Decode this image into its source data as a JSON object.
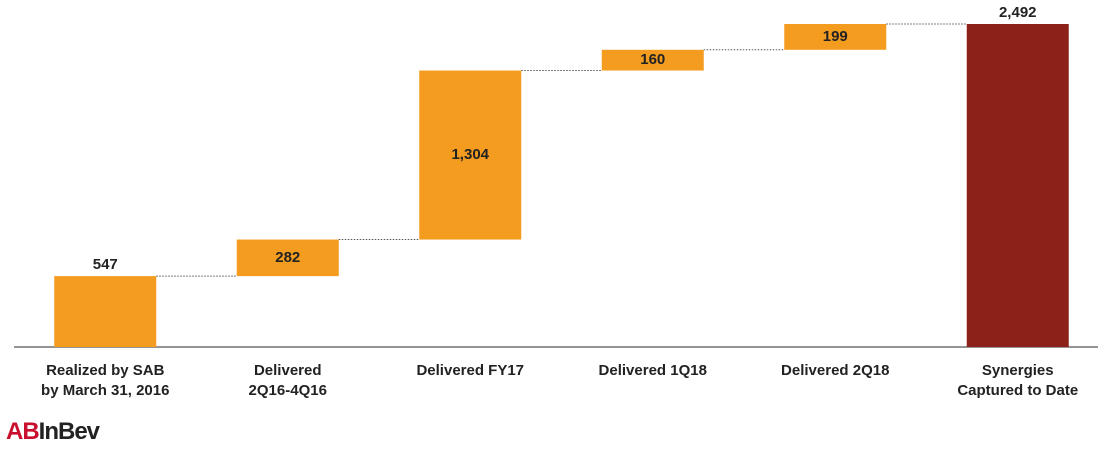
{
  "chart_data": {
    "type": "waterfall",
    "categories": [
      "Realized by SAB\nby March 31, 2016",
      "Delivered\n2Q16-4Q16",
      "Delivered FY17",
      "Delivered 1Q18",
      "Delivered 2Q18",
      "Synergies\nCaptured to Date"
    ],
    "values": [
      547,
      282,
      1304,
      160,
      199,
      2492
    ],
    "value_labels": [
      "547",
      "282",
      "1,304",
      "160",
      "199",
      "2,492"
    ],
    "color": "#f39c1f",
    "total_color": "#8b2119"
  },
  "logo": [
    "AB",
    "InBev"
  ]
}
